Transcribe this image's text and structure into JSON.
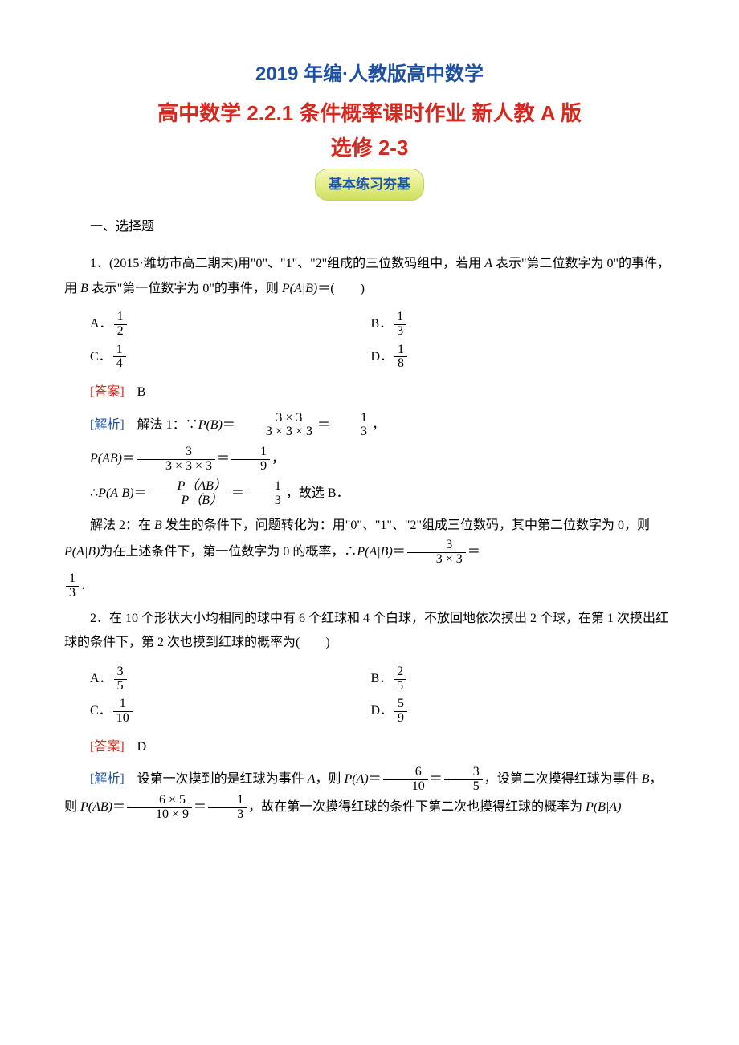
{
  "header": "2019 年编·人教版高中数学",
  "title_line1": "高中数学 2.2.1 条件概率课时作业 新人教 A 版",
  "title_line2": "选修 2-3",
  "subtitle": "基本练习夯基",
  "section": "一、选择题",
  "colors": {
    "header_blue": "#1e50a2",
    "title_red": "#d6281e",
    "analysis_blue": "#1e50a2"
  },
  "q1": {
    "stem_a": "1．(2015·潍坊市高二期末)用\"0\"、\"1\"、\"2\"组成的三位数码组中，若用 ",
    "stem_b": " 表示\"第二位数字为 0\"的事件，用 ",
    "stem_c": " 表示\"第一位数字为 0\"的事件，则 ",
    "stem_d": "＝(　　)",
    "var_a": "A",
    "var_b": "B",
    "cond": "P(A|B)",
    "a_label": "A．",
    "b_label": "B．",
    "c_label": "C．",
    "d_label": "D．",
    "a_num": "1",
    "a_den": "2",
    "b_num": "1",
    "b_den": "3",
    "c_num": "1",
    "c_den": "4",
    "d_num": "1",
    "d_den": "8",
    "answer_label": "[答案]",
    "answer": "　B",
    "analysis_label": "[解析]",
    "sol1_a": "　解法 1：∵",
    "sol1_b": "P(B)",
    "eq": "＝",
    "pb_num": "3 × 3",
    "pb_den": "3 × 3 × 3",
    "pb_r_num": "1",
    "pb_r_den": "3",
    "comma": "，",
    "pab": "P(AB)",
    "pab_num": "3",
    "pab_den": "3 × 3 × 3",
    "pab_r_num": "1",
    "pab_r_den": "9",
    "therefore": "∴",
    "cond2": "P(A|B)",
    "ratio_num": "P（AB）",
    "ratio_den": "P（B）",
    "res_num": "1",
    "res_den": "3",
    "sol1_tail": "，故选 B．",
    "sol2_a": "解法 2：在 ",
    "sol2_b": " 发生的条件下，问题转化为：用\"0\"、\"1\"、\"2\"组成三位数码，其中第二位数字为 0，则 ",
    "sol2_c": "为在上述条件下，第一位数字为 0 的概率，∴",
    "sol2_num": "3",
    "sol2_den": "3 × 3",
    "sol2_r_num": "1",
    "sol2_r_den": "3",
    "period": "．"
  },
  "q2": {
    "stem": "2．在 10 个形状大小均相同的球中有 6 个红球和 4 个白球，不放回地依次摸出 2 个球，在第 1 次摸出红球的条件下，第 2 次也摸到红球的概率为(　　)",
    "a_label": "A．",
    "b_label": "B．",
    "c_label": "C．",
    "d_label": "D．",
    "a_num": "3",
    "a_den": "5",
    "b_num": "2",
    "b_den": "5",
    "c_num": "1",
    "c_den": "10",
    "d_num": "5",
    "d_den": "9",
    "answer_label": "[答案]",
    "answer": "　D",
    "analysis_label": "[解析]",
    "sol_a": "　设第一次摸到的是红球为事件 ",
    "var_a": "A",
    "sol_b": "，则 ",
    "pa": "P(A)",
    "eq": "＝",
    "pa_num": "6",
    "pa_den": "10",
    "pa_r_num": "3",
    "pa_r_den": "5",
    "sol_c": "，设第二次摸得红球为事件 ",
    "var_b": "B",
    "sol_d": "，则 ",
    "pab": "P(AB)",
    "pab_num": "6 × 5",
    "pab_den": "10 × 9",
    "pab_r_num": "1",
    "pab_r_den": "3",
    "sol_e": "，故在第一次摸得红球的条件下第二次也摸得红球的概率为 ",
    "cond": "P(B|A)"
  }
}
